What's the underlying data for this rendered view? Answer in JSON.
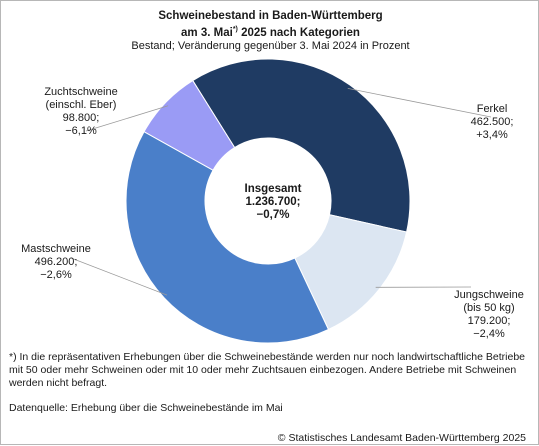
{
  "chart_data": {
    "type": "pie",
    "title_line1": "Schweinebestand in Baden-Württemberg",
    "title_line2_pre": "am 3. Mai",
    "title_line2_sup": "*)",
    "title_line2_post": " 2025 nach Kategorien",
    "subtitle": "Bestand; Veränderung gegenüber 3. Mai 2024 in Prozent",
    "center": {
      "label": "Insgesamt",
      "value": "1.236.700;",
      "change": "−0,7%"
    },
    "slices": [
      {
        "name_lines": [
          "Ferkel"
        ],
        "value": 462500,
        "value_text": "462.500;",
        "change": "+3,4%",
        "color": "#1f3b63"
      },
      {
        "name_lines": [
          "Jungschweine",
          "(bis 50 kg)"
        ],
        "value": 179200,
        "value_text": "179.200;",
        "change": "−2,4%",
        "color": "#dce6f2"
      },
      {
        "name_lines": [
          "Mastschweine"
        ],
        "value": 496200,
        "value_text": "496.200;",
        "change": "−2,6%",
        "color": "#4a7fc9"
      },
      {
        "name_lines": [
          "Zuchtschweine",
          "(einschl. Eber)"
        ],
        "value": 98800,
        "value_text": "98.800;",
        "change": "−6,1%",
        "color": "#9a9bf5"
      }
    ]
  },
  "footnote": "*) In die repräsentativen Erhebungen über die Schweinebestände werden nur noch landwirtschaftliche Betriebe mit 50 oder mehr Schweinen oder mit 10 oder mehr Zuchtsauen einbezogen. Andere Betriebe mit Schweinen werden nicht befragt.",
  "source": "Datenquelle: Erhebung über die Schweinebestände im Mai",
  "copyright": "© Statistisches Landesamt Baden-Württemberg 2025"
}
